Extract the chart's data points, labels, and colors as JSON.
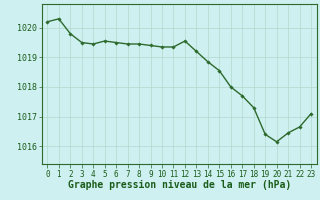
{
  "x": [
    0,
    1,
    2,
    3,
    4,
    5,
    6,
    7,
    8,
    9,
    10,
    11,
    12,
    13,
    14,
    15,
    16,
    17,
    18,
    19,
    20,
    21,
    22,
    23
  ],
  "y": [
    1020.2,
    1020.3,
    1019.8,
    1019.5,
    1019.45,
    1019.55,
    1019.5,
    1019.45,
    1019.45,
    1019.4,
    1019.35,
    1019.35,
    1019.55,
    1019.2,
    1018.85,
    1018.55,
    1018.0,
    1017.7,
    1017.3,
    1016.4,
    1016.15,
    1016.45,
    1016.65,
    1017.1
  ],
  "line_color": "#2d6a2d",
  "marker": "D",
  "marker_size": 1.8,
  "line_width": 1.0,
  "bg_color": "#cff0f0",
  "grid_color": "#b0d8cc",
  "tick_label_color": "#1a5c1a",
  "xlabel": "Graphe pression niveau de la mer (hPa)",
  "xlabel_color": "#1a5c1a",
  "xlabel_fontsize": 7.0,
  "xlim": [
    -0.5,
    23.5
  ],
  "ylim": [
    1015.4,
    1020.8
  ],
  "yticks": [
    1016,
    1017,
    1018,
    1019,
    1020
  ],
  "xticks": [
    0,
    1,
    2,
    3,
    4,
    5,
    6,
    7,
    8,
    9,
    10,
    11,
    12,
    13,
    14,
    15,
    16,
    17,
    18,
    19,
    20,
    21,
    22,
    23
  ],
  "tick_fontsize": 5.5,
  "ytick_fontsize": 6.0,
  "spine_color": "#2d6a2d"
}
